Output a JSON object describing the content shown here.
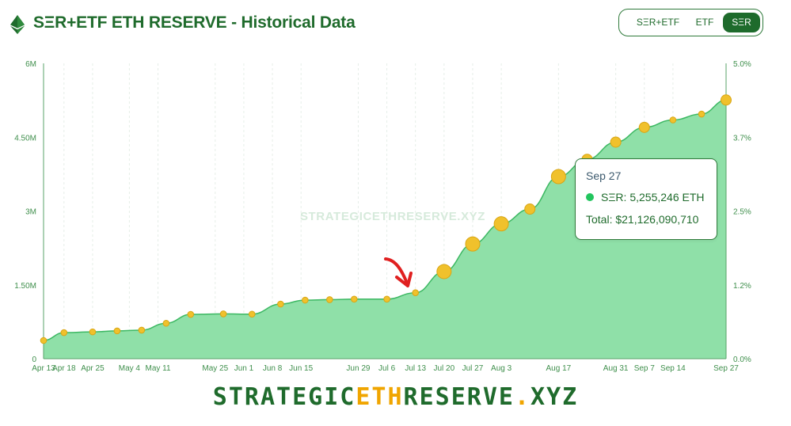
{
  "header": {
    "title": "SΞR+ETF ETH RESERVE - Historical Data",
    "logo_icon": "ethereum-diamond-icon",
    "toggle": {
      "options": [
        "SΞR+ETF",
        "ETF",
        "SΞR"
      ],
      "selected": "SΞR"
    }
  },
  "colors": {
    "brand_green": "#1f6b2c",
    "area_fill": "#8fe0a8",
    "line": "#3cb862",
    "point": "#f0c12c",
    "accent_orange": "#f0a500",
    "series_dot": "#22c55e"
  },
  "watermark": "STRATEGICETHRESERVE.XYZ",
  "tooltip": {
    "date": "Sep 27",
    "series_label": "SΞR: 5,255,246 ETH",
    "total_label": "Total: $21,126,090,710"
  },
  "footer": {
    "part1": "STRATEGIC",
    "part2": "ETH",
    "part3": "RESERVE",
    "part4": ".",
    "part5": "XYZ"
  },
  "chart_data": {
    "type": "area",
    "title": "SΞR+ETF ETH RESERVE - Historical Data",
    "series": [
      {
        "name": "SΞR",
        "unit": "ETH",
        "points": [
          {
            "x": "Apr 13",
            "y": 370000
          },
          {
            "x": "Apr 18",
            "y": 530000
          },
          {
            "x": "Apr 25",
            "y": 545000
          },
          {
            "x": "May 1",
            "y": 565000
          },
          {
            "x": "May 7",
            "y": 580000
          },
          {
            "x": "May 13",
            "y": 720000
          },
          {
            "x": "May 19",
            "y": 900000
          },
          {
            "x": "May 27",
            "y": 910000
          },
          {
            "x": "Jun 3",
            "y": 905000
          },
          {
            "x": "Jun 10",
            "y": 1110000
          },
          {
            "x": "Jun 16",
            "y": 1190000
          },
          {
            "x": "Jun 22",
            "y": 1200000
          },
          {
            "x": "Jun 28",
            "y": 1210000
          },
          {
            "x": "Jul 6",
            "y": 1210000
          },
          {
            "x": "Jul 13",
            "y": 1340000
          },
          {
            "x": "Jul 20",
            "y": 1770000
          },
          {
            "x": "Jul 27",
            "y": 2330000
          },
          {
            "x": "Aug 3",
            "y": 2740000
          },
          {
            "x": "Aug 10",
            "y": 3040000
          },
          {
            "x": "Aug 17",
            "y": 3700000
          },
          {
            "x": "Aug 24",
            "y": 4050000
          },
          {
            "x": "Aug 31",
            "y": 4400000
          },
          {
            "x": "Sep 7",
            "y": 4700000
          },
          {
            "x": "Sep 14",
            "y": 4850000
          },
          {
            "x": "Sep 21",
            "y": 4970000
          },
          {
            "x": "Sep 27",
            "y": 5255246
          }
        ]
      }
    ],
    "x_tick_labels": [
      "Apr 13",
      "Apr 18",
      "Apr 25",
      "May 4",
      "May 11",
      "May 25",
      "Jun 1",
      "Jun 8",
      "Jun 15",
      "Jun 29",
      "Jul 6",
      "Jul 13",
      "Jul 20",
      "Jul 27",
      "Aug 3",
      "Aug 17",
      "Aug 31",
      "Sep 7",
      "Sep 14",
      "Sep 27"
    ],
    "y_left": {
      "ticks": [
        "0",
        "1.50M",
        "3M",
        "4.50M",
        "6M"
      ],
      "range": [
        0,
        6000000
      ]
    },
    "y_right": {
      "ticks": [
        "0.0%",
        "1.2%",
        "2.5%",
        "3.7%",
        "5.0%"
      ],
      "range": [
        0,
        5
      ]
    },
    "grid": "vertical dashed",
    "legend": "none",
    "annotation": "red hand-drawn arrow pointing to the Jul 13 point"
  }
}
